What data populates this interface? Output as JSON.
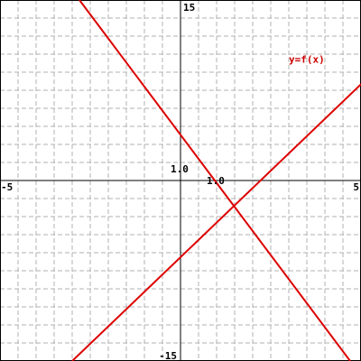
{
  "chart_data": {
    "type": "line",
    "title": "",
    "xlabel": "",
    "ylabel": "",
    "xlim": [
      -5,
      5
    ],
    "ylim": [
      -15,
      15
    ],
    "grid": true,
    "grid_x_step": 0.5,
    "grid_y_step": 1.5,
    "tick_labels": {
      "x_min": "-5",
      "x_max": "5",
      "y_min": "-15",
      "y_max": "15",
      "x_unit": "1.0",
      "y_unit": "1.0"
    },
    "series": [
      {
        "x": [
          -3,
          5
        ],
        "y": [
          -15,
          8.0
        ]
      },
      {
        "x": [
          -2.8,
          4.7
        ],
        "y": [
          15,
          -15
        ]
      }
    ],
    "annotations": [
      {
        "text": "y=f(x)",
        "x": 3.0,
        "y": 9.8
      }
    ],
    "colors": {
      "line": "#dd0000",
      "grid": "#b0b0b0",
      "axis": "#000000",
      "annotation": "#cc0000"
    }
  }
}
